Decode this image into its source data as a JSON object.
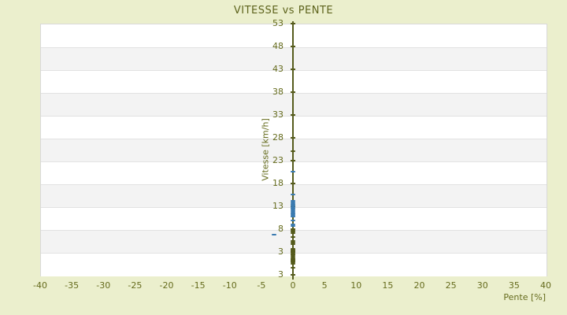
{
  "title": "VITESSE vs PENTE",
  "colors": {
    "page_background": "#ebefcd",
    "text_olive": "#666c1e",
    "title_olive": "#5d631c",
    "axis_line": "#565c1d",
    "band_white": "#ffffff",
    "band_gray": "#f3f3f3",
    "gridline": "#e2e2e2",
    "plot_border": "#d9d9d9",
    "series_blue": "#3a7ab0",
    "series_olive": "#545a1b"
  },
  "chart_data": {
    "type": "scatter",
    "title": "VITESSE vs PENTE",
    "xlabel": "Pente [%]",
    "ylabel": "Vitesse [km/h]",
    "xlim": [
      -40,
      40
    ],
    "ylim": [
      -2,
      53
    ],
    "x_ticks": [
      -40,
      -35,
      -30,
      -25,
      -20,
      -15,
      -10,
      -5,
      0,
      5,
      10,
      15,
      20,
      25,
      30,
      35,
      40
    ],
    "y_ticks": [
      53,
      48,
      43,
      38,
      33,
      28,
      23,
      18,
      13,
      8,
      3
    ],
    "y_axis_bottom_label": "3",
    "grid": "horizontal-bands-alternating",
    "legend": "none",
    "y_axis_position": "at x=0",
    "series": [
      {
        "name": "vitesse-points-blue",
        "color": "#3a7ab0",
        "marker": {
          "w": 6,
          "h": 2
        },
        "points": [
          [
            0,
            20.6
          ],
          [
            0,
            15.6
          ],
          [
            0,
            14.2
          ],
          [
            0,
            13.9
          ],
          [
            0,
            13.6
          ],
          [
            0,
            13.3
          ],
          [
            0,
            13.0
          ],
          [
            0,
            12.7
          ],
          [
            0,
            12.4
          ],
          [
            0,
            12.1
          ],
          [
            0,
            11.8
          ],
          [
            0,
            11.5
          ],
          [
            0,
            11.2
          ],
          [
            0,
            10.9
          ],
          [
            0,
            10.7
          ],
          [
            0,
            9.9
          ],
          [
            0,
            9.0
          ],
          [
            0,
            8.7
          ],
          [
            -3,
            6.8
          ]
        ]
      },
      {
        "name": "vitesse-points-olive",
        "color": "#545a1b",
        "marker": {
          "w": 6,
          "h": 2
        },
        "points": [
          [
            0,
            25.1
          ],
          [
            0,
            7.7
          ],
          [
            0,
            7.4
          ],
          [
            0,
            7.1
          ],
          [
            0,
            6.2
          ],
          [
            0,
            5.5
          ],
          [
            0,
            5.1
          ],
          [
            0,
            4.8
          ],
          [
            0,
            3.7
          ],
          [
            0,
            3.5
          ],
          [
            0,
            3.3
          ],
          [
            0,
            3.1
          ],
          [
            0,
            2.7
          ],
          [
            0,
            2.5
          ],
          [
            0,
            2.3
          ],
          [
            0,
            1.9
          ],
          [
            0,
            1.7
          ],
          [
            0,
            1.5
          ],
          [
            0,
            1.3
          ],
          [
            0,
            1.1
          ],
          [
            0,
            0.9
          ],
          [
            0,
            0.8
          ],
          [
            0,
            0.5
          ],
          [
            0,
            -0.4
          ]
        ]
      }
    ]
  }
}
